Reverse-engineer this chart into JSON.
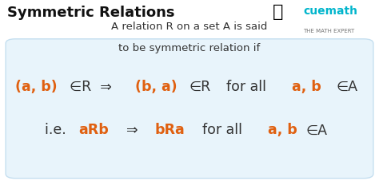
{
  "title": "Symmetric Relations",
  "title_color": "#111111",
  "title_fontsize": 13,
  "bg_color": "#ffffff",
  "box_facecolor": "#e8f4fb",
  "box_edgecolor": "#c5dff0",
  "line1": "A relation R on a set A is said",
  "line2": "to be symmetric relation if",
  "text_color": "#333333",
  "text_fontsize": 9.5,
  "orange": "#e06010",
  "dark": "#333333",
  "formula1_parts": [
    {
      "text": "(a, b)",
      "color": "#e06010",
      "bold": true,
      "size": 12.5
    },
    {
      "text": "∈R  ⇒  ",
      "color": "#333333",
      "bold": false,
      "size": 12.5
    },
    {
      "text": "(b, a)",
      "color": "#e06010",
      "bold": true,
      "size": 12.5
    },
    {
      "text": "∈R",
      "color": "#333333",
      "bold": false,
      "size": 12.5
    },
    {
      "text": "  for all  ",
      "color": "#333333",
      "bold": false,
      "size": 12.5
    },
    {
      "text": "a, b ",
      "color": "#e06010",
      "bold": true,
      "size": 12.5
    },
    {
      "text": "∈A",
      "color": "#333333",
      "bold": false,
      "size": 12.5
    }
  ],
  "formula2_parts": [
    {
      "text": "i.e. ",
      "color": "#333333",
      "bold": false,
      "size": 12.5
    },
    {
      "text": "aRb",
      "color": "#e06010",
      "bold": true,
      "size": 12.5
    },
    {
      "text": "  ⇒  ",
      "color": "#333333",
      "bold": false,
      "size": 12.5
    },
    {
      "text": "bRa",
      "color": "#e06010",
      "bold": true,
      "size": 12.5
    },
    {
      "text": "  for all  ",
      "color": "#333333",
      "bold": false,
      "size": 12.5
    },
    {
      "text": "a, b",
      "color": "#e06010",
      "bold": true,
      "size": 12.5
    },
    {
      "text": "∈A",
      "color": "#333333",
      "bold": false,
      "size": 12.5
    }
  ],
  "cuemath_text": "cuemath",
  "cuemath_color": "#00b5cc",
  "cuemath_sub": "THE MATH EXPERT",
  "cuemath_sub_color": "#777777",
  "rocket": "🚀"
}
